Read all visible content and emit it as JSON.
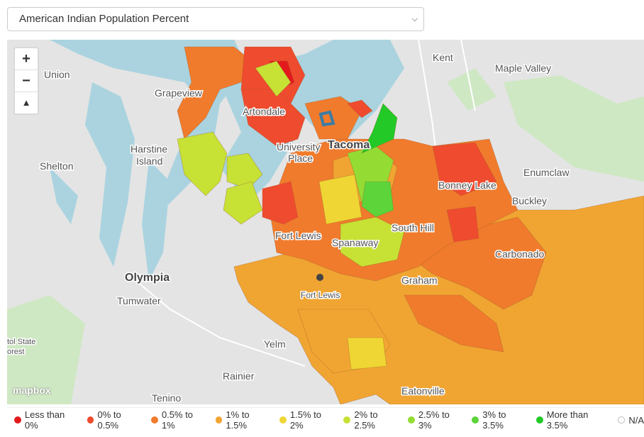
{
  "selector": {
    "label": "American Indian Population Percent"
  },
  "places": [
    "Kent",
    "Maple Valley",
    "Union",
    "Grapeview",
    "Artondale",
    "Harstine",
    "Island",
    "Shelton",
    "University",
    "Place",
    "Tacoma",
    "Enumclaw",
    "Bonney Lake",
    "Buckley",
    "Fort Lewis",
    "Spanaway",
    "South Hill",
    "Carbonado",
    "Olympia",
    "Graham",
    "Fort Lewis",
    "Tumwater",
    "Yelm",
    "Rainier",
    "Tenino",
    "Eatonville",
    "tol State",
    "orest"
  ],
  "attribution": "mapbox",
  "legend": [
    {
      "label": "Less than 0%",
      "color": "#e31a1c"
    },
    {
      "label": "0% to 0.5%",
      "color": "#ef4b2f"
    },
    {
      "label": "0.5% to 1%",
      "color": "#f07b2c"
    },
    {
      "label": "1% to 1.5%",
      "color": "#f0a532"
    },
    {
      "label": "1.5% to 2%",
      "color": "#efd634"
    },
    {
      "label": "2% to 2.5%",
      "color": "#c7e135"
    },
    {
      "label": "2.5% to 3%",
      "color": "#94dc33"
    },
    {
      "label": "3% to 3.5%",
      "color": "#5cd43a"
    },
    {
      "label": "More than 3.5%",
      "color": "#22c927"
    },
    {
      "label": "N/A",
      "color": "#ffffff"
    }
  ]
}
